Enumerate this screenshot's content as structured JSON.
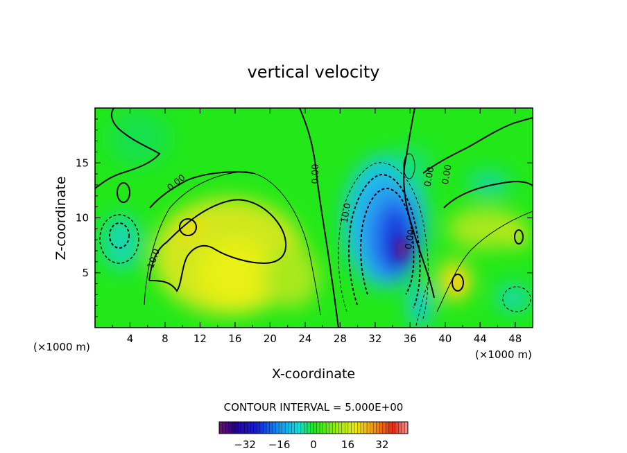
{
  "chart_data": {
    "type": "heatmap",
    "title": "vertical velocity",
    "xlabel": "X-coordinate",
    "ylabel": "Z-coordinate",
    "x_unit": "(×1000 m)",
    "y_unit": "(×1000 m)",
    "xlim": [
      0,
      50
    ],
    "ylim": [
      0,
      20
    ],
    "x_ticks": [
      4,
      8,
      12,
      16,
      20,
      24,
      28,
      32,
      36,
      40,
      44,
      48
    ],
    "y_ticks": [
      5,
      10,
      15
    ],
    "contour_interval_text": "CONTOUR INTERVAL = 5.000E+00",
    "contour_labels": [
      {
        "text": "0.00",
        "x": 9.5,
        "z": 13.0,
        "angle": -40
      },
      {
        "text": "10.0",
        "x": 7.0,
        "z": 6.2,
        "angle": -70
      },
      {
        "text": "0.00",
        "x": 25.5,
        "z": 14.0,
        "angle": -90
      },
      {
        "text": "10.0",
        "x": 29.0,
        "z": 10.4,
        "angle": -80
      },
      {
        "text": "0.00",
        "x": 36.3,
        "z": 8.0,
        "angle": -80
      },
      {
        "text": "0.00",
        "x": 38.5,
        "z": 13.7,
        "angle": -80
      },
      {
        "text": "0.00",
        "x": 40.5,
        "z": 13.9,
        "angle": -80
      }
    ],
    "features": [
      {
        "kind": "max",
        "x": 16.5,
        "z": 5.5,
        "value": 15
      },
      {
        "kind": "max",
        "x": 10.5,
        "z": 9.5,
        "value": 18
      },
      {
        "kind": "min",
        "x": 34.8,
        "z": 7.2,
        "value": -38
      },
      {
        "kind": "min",
        "x": 33.5,
        "z": 9.0,
        "value": -28
      },
      {
        "kind": "max",
        "x": 41.0,
        "z": 4.2,
        "value": 22
      },
      {
        "kind": "max",
        "x": 47.5,
        "z": 8.5,
        "value": 14
      },
      {
        "kind": "min",
        "x": 3.0,
        "z": 7.5,
        "value": -12
      },
      {
        "kind": "min",
        "x": 37.8,
        "z": 3.0,
        "value": -14
      },
      {
        "kind": "min",
        "x": 47.0,
        "z": 3.0,
        "value": -8
      },
      {
        "kind": "min",
        "x": 45.0,
        "z": 13.0,
        "value": -8
      }
    ],
    "colorbar": {
      "ticks": [
        -32,
        -16,
        0,
        16,
        32
      ],
      "tick_labels": [
        "−32",
        "−16",
        "0",
        "16",
        "32"
      ],
      "range": [
        -44,
        44
      ]
    }
  }
}
